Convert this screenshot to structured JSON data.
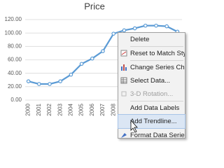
{
  "chart_data": {
    "type": "line",
    "title": "Price",
    "categories": [
      "2000",
      "2001",
      "2002",
      "2003",
      "2004",
      "2005",
      "2006",
      "2007",
      "2008",
      null,
      null,
      null,
      null,
      null,
      null
    ],
    "values": [
      28,
      24,
      24,
      28,
      38,
      54,
      62,
      73,
      99,
      104,
      107,
      111,
      111,
      110,
      102
    ],
    "color": "#5b9bd5",
    "ylim": [
      0,
      120
    ],
    "yticks": [
      {
        "value": 0,
        "label": "0.00"
      },
      {
        "value": 20,
        "label": "20.00"
      },
      {
        "value": 40,
        "label": "40.00"
      },
      {
        "value": 60,
        "label": "60.00"
      },
      {
        "value": 80,
        "label": "80.00"
      },
      {
        "value": 100,
        "label": "100.00"
      },
      {
        "value": 120,
        "label": "120.00"
      }
    ],
    "grid": true
  },
  "context_menu": {
    "items": [
      "Delete",
      "Reset to Match Styl",
      "Change Series Char",
      "Select Data...",
      "3-D Rotation...",
      "Add Data Labels",
      "Add Trendline...",
      "Format Data Series..."
    ]
  }
}
